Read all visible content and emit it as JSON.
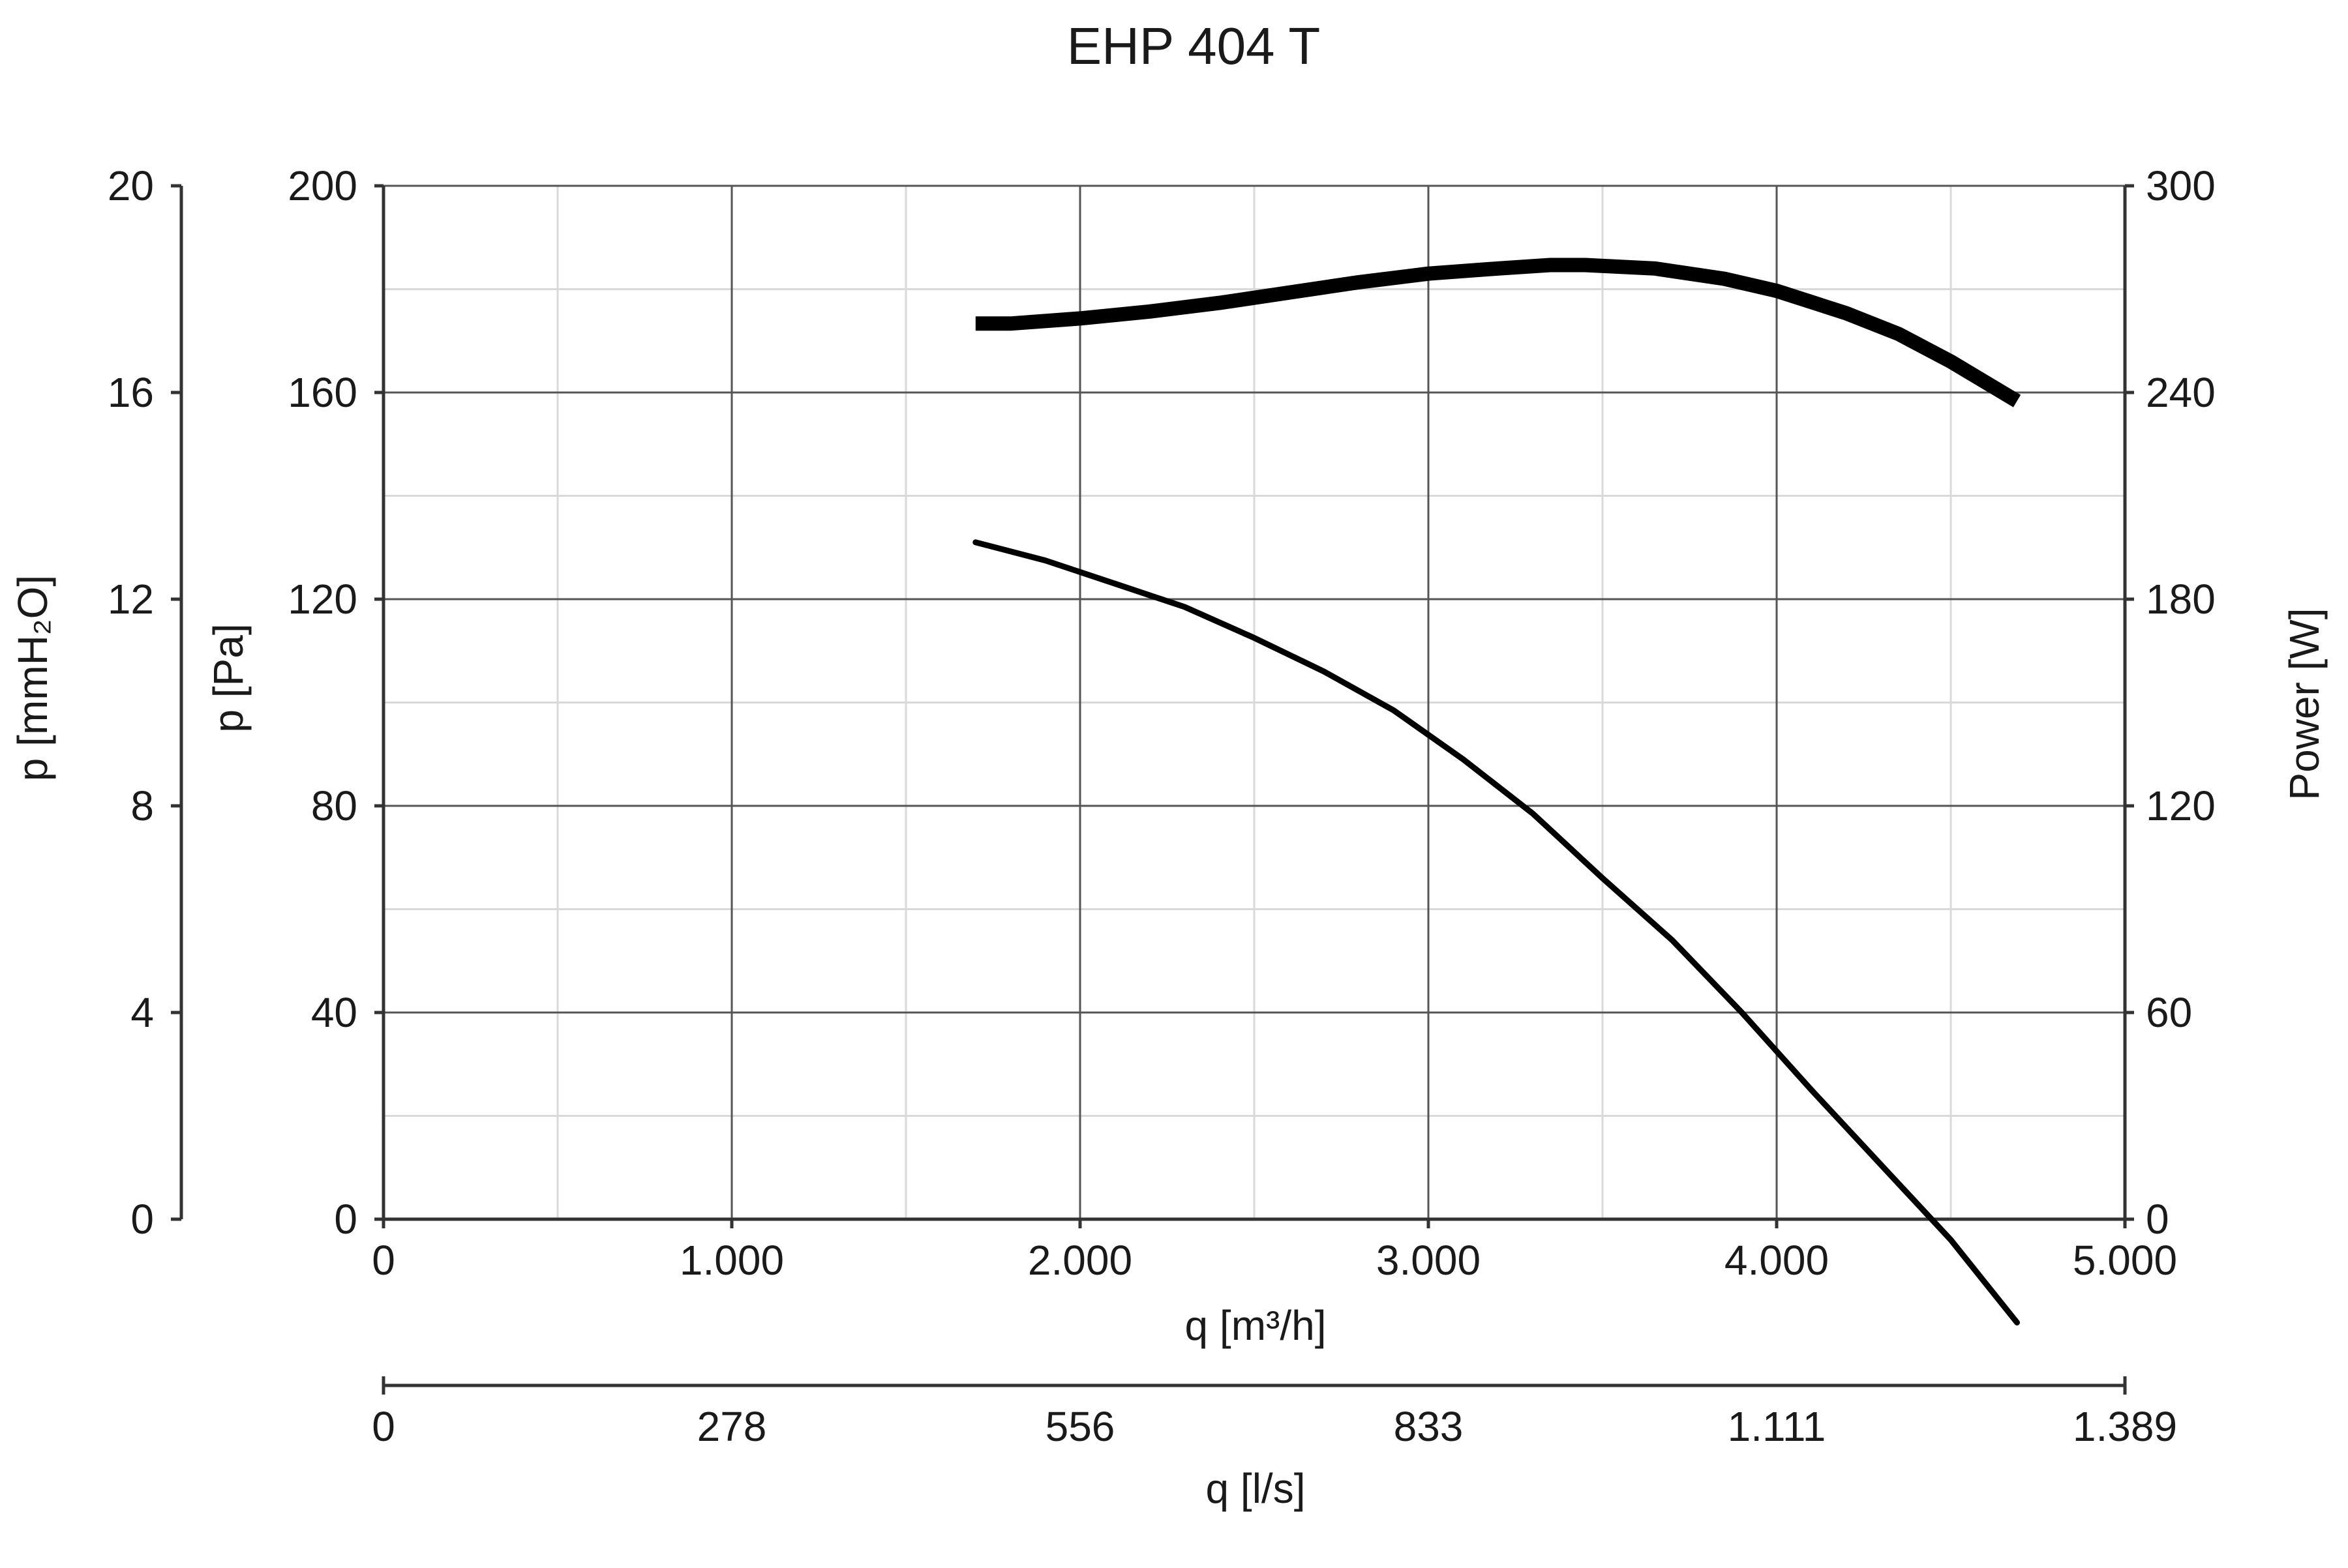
{
  "chart_data": {
    "type": "line",
    "title": "EHP 404 T",
    "xlabel": "q [m³/h]",
    "xlim": [
      0,
      5000
    ],
    "x_ticks": [
      "0",
      "1.000",
      "2.000",
      "3.000",
      "4.000",
      "5.000"
    ],
    "x2label": "q [l/s]",
    "x2_ticks": [
      "0",
      "278",
      "556",
      "833",
      "1.111",
      "1.389"
    ],
    "ylabel": "p [Pa]",
    "ylim": [
      0,
      200
    ],
    "y_ticks": [
      "0",
      "40",
      "80",
      "120",
      "160",
      "200"
    ],
    "y_outer_label": "p [mmH₂O]",
    "y_outer_ticks": [
      "0",
      "4",
      "8",
      "12",
      "16",
      "20"
    ],
    "y2label": "Power [W]",
    "y2lim": [
      0,
      300
    ],
    "y2_ticks": [
      "0",
      "60",
      "120",
      "180",
      "240",
      "300"
    ],
    "grid": true,
    "series": [
      {
        "axis": "p [Pa]",
        "x": [
          1700,
          1900,
          2100,
          2300,
          2500,
          2700,
          2900,
          3100,
          3300,
          3500,
          3700,
          3900,
          4100,
          4300,
          4500,
          4690
        ],
        "y": [
          131,
          127.5,
          123,
          118.5,
          112.5,
          106,
          98.5,
          89,
          78.5,
          66,
          54,
          40,
          25,
          10.5,
          -4,
          -20
        ]
      },
      {
        "axis": "Power [W]",
        "x": [
          1700,
          1800,
          2000,
          2200,
          2400,
          2600,
          2800,
          3000,
          3200,
          3350,
          3450,
          3650,
          3850,
          4000,
          4200,
          4350,
          4500,
          4690
        ],
        "y": [
          260,
          260,
          261.5,
          263.5,
          266,
          269,
          272,
          274.5,
          276,
          277,
          277,
          276,
          273,
          269.5,
          263,
          257,
          249,
          237.5
        ]
      }
    ]
  }
}
